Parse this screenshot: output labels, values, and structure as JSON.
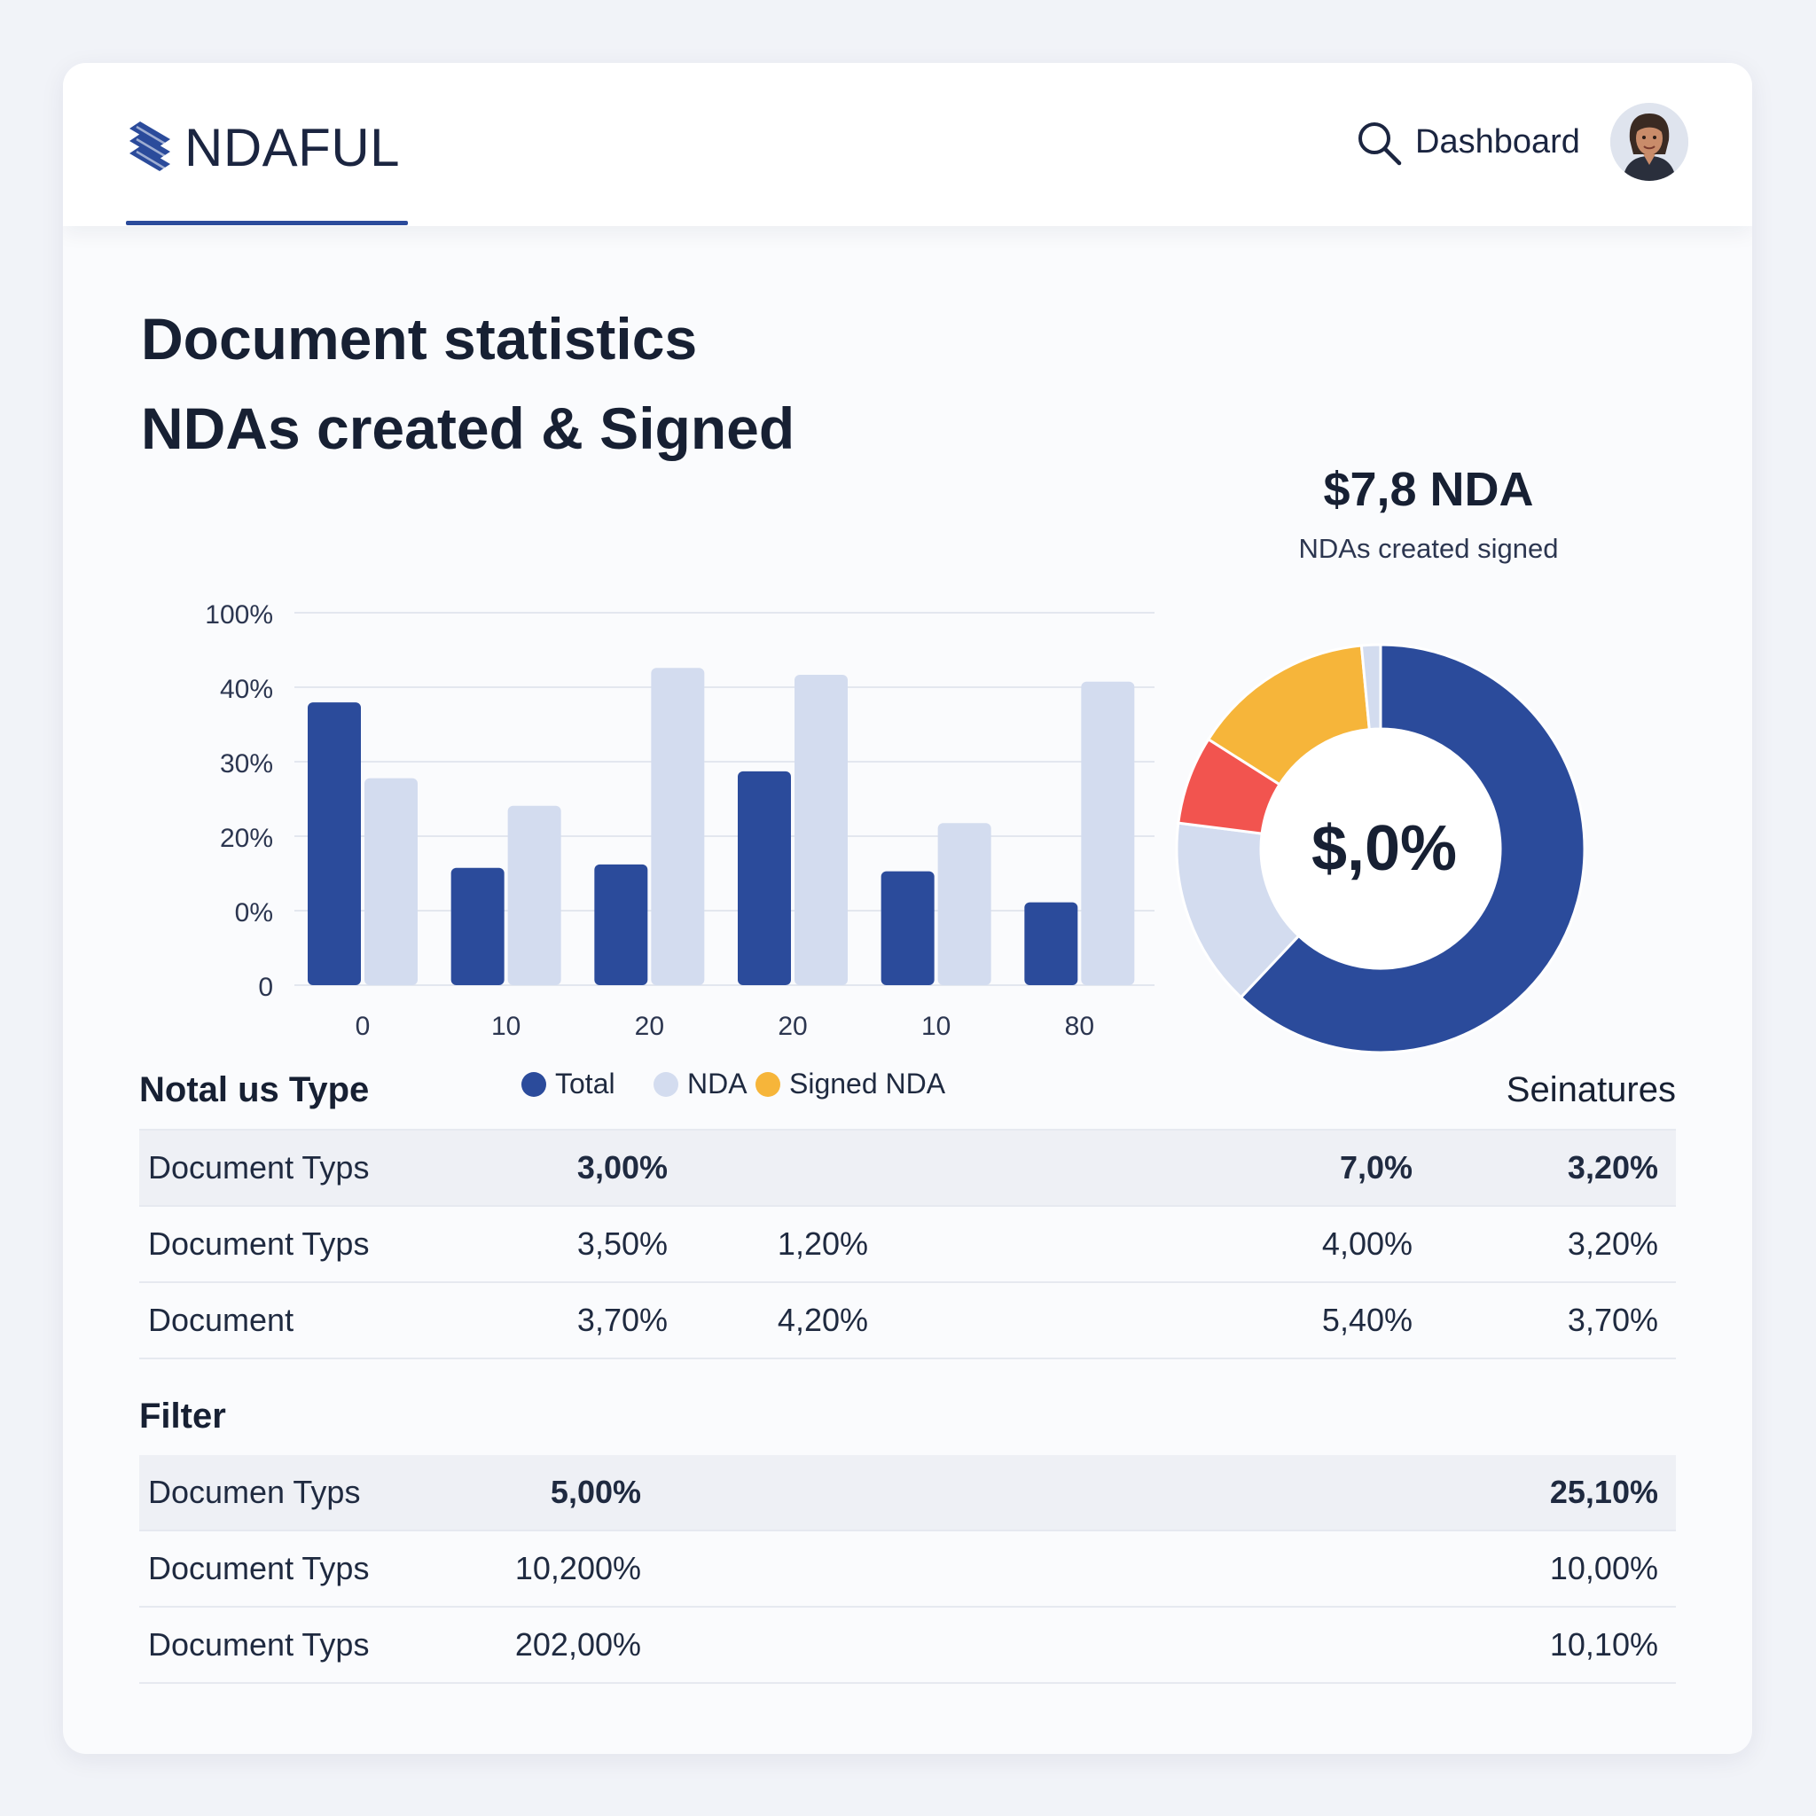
{
  "header": {
    "brand_name": "NDAFUL",
    "nav_link": "Dashboard",
    "search_icon": "search-icon",
    "avatar": "user-avatar"
  },
  "page": {
    "title": "Document statistics",
    "subtitle": "NDAs created & Signed"
  },
  "colors": {
    "primary": "#2b4b9b",
    "light": "#d3dcef",
    "accent_yellow": "#f6b53a",
    "accent_red": "#f2544f"
  },
  "chart_data": [
    {
      "type": "bar",
      "categories": [
        "0",
        "10",
        "20",
        "20",
        "10",
        "80"
      ],
      "y_ticks": [
        "100%",
        "40%",
        "30%",
        "20%",
        "0%",
        "0"
      ],
      "series": [
        {
          "name": "Total",
          "color": "#2b4b9b",
          "values": [
            41,
            17,
            17.5,
            31,
            16.5,
            12
          ]
        },
        {
          "name": "NDA",
          "color": "#d3dcef",
          "values": [
            30,
            26,
            46,
            45,
            23.5,
            44
          ]
        }
      ],
      "legend": [
        {
          "name": "Total",
          "color": "#2b4b9b"
        },
        {
          "name": "NDA",
          "color": "#d3dcef"
        },
        {
          "name": "Signed NDA",
          "color": "#f6b53a"
        }
      ],
      "legend_position": "bottom",
      "grid": true
    },
    {
      "type": "pie",
      "title": "$7,8 NDA",
      "subtitle": "NDAs created signed",
      "center_label": "$,0%",
      "slices": [
        {
          "value": 62,
          "color": "#2b4b9b"
        },
        {
          "value": 15,
          "color": "#d3dcef"
        },
        {
          "value": 7,
          "color": "#f2544f"
        },
        {
          "value": 14.5,
          "color": "#f6b53a"
        },
        {
          "value": 1.5,
          "color": "#d3dcef"
        }
      ]
    }
  ],
  "status_table": {
    "title": "Notal us Type",
    "right_header": "Seinatures",
    "rows": [
      {
        "label": "Document Typs",
        "c1": "3,00%",
        "c2": "",
        "c3": "7,0%",
        "c4": "3,20%",
        "shaded": true
      },
      {
        "label": "Document Typs",
        "c1": "3,50%",
        "c2": "1,20%",
        "c3": "4,00%",
        "c4": "3,20%",
        "shaded": false
      },
      {
        "label": "Document",
        "c1": "3,70%",
        "c2": "4,20%",
        "c3": "5,40%",
        "c4": "3,70%",
        "shaded": false
      }
    ]
  },
  "filter_table": {
    "title": "Filter",
    "rows": [
      {
        "label": "Documen Typs",
        "c1": "5,00%",
        "c2": "25,10%",
        "shaded": true
      },
      {
        "label": "Document Typs",
        "c1": "10,200%",
        "c2": "10,00%",
        "shaded": false
      },
      {
        "label": "Document Typs",
        "c1": "202,00%",
        "c2": "10,10%",
        "shaded": false
      }
    ]
  }
}
